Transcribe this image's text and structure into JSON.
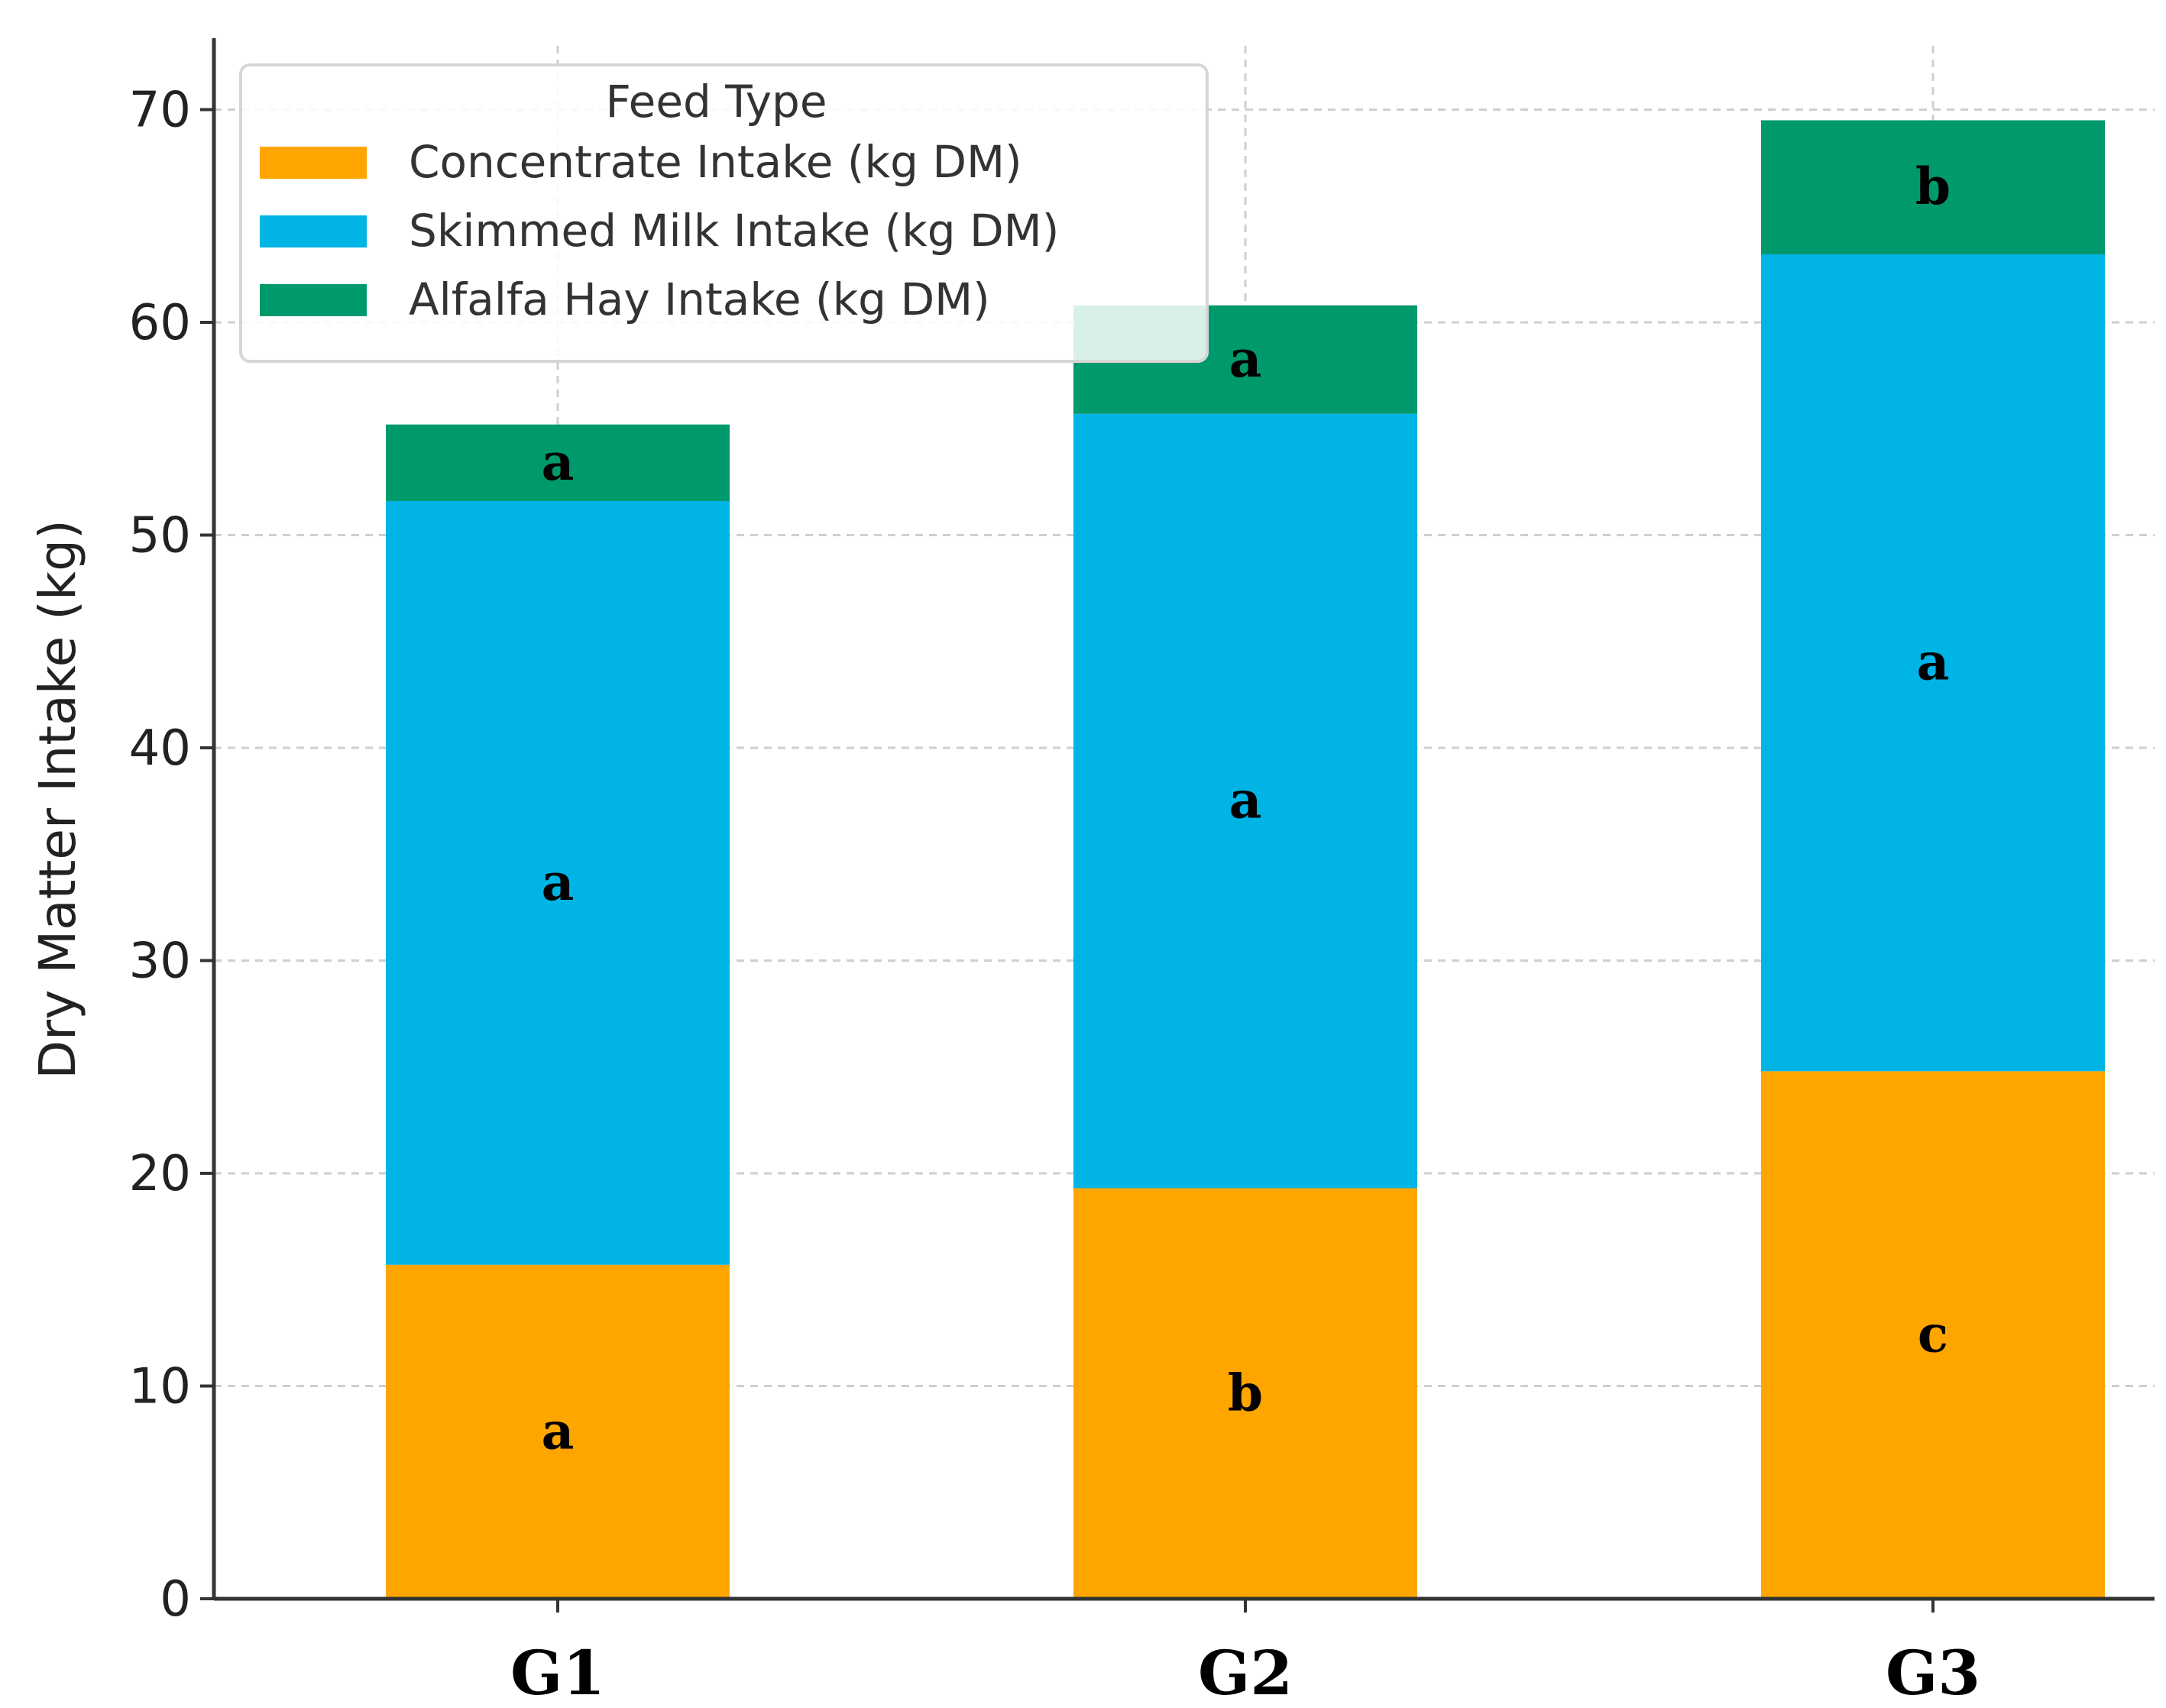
{
  "chart_data": {
    "type": "bar",
    "stacked": true,
    "categories": [
      "G1",
      "G2",
      "G3"
    ],
    "ylabel": "Dry Matter Intake (kg)",
    "xlabel": "",
    "ylim": [
      0,
      73
    ],
    "yticks": [
      0,
      10,
      20,
      30,
      40,
      50,
      60,
      70
    ],
    "grid": true,
    "legend": {
      "title": "Feed Type",
      "placement": "top-left"
    },
    "series": [
      {
        "name": "Concentrate Intake (kg DM)",
        "color": "#FFA500",
        "values": [
          15.7,
          19.3,
          24.8
        ],
        "labels": [
          "a",
          "b",
          "c"
        ]
      },
      {
        "name": "Skimmed Milk Intake (kg DM)",
        "color": "#00B4E6",
        "values": [
          35.9,
          36.4,
          38.4
        ],
        "labels": [
          "a",
          "a",
          "a"
        ]
      },
      {
        "name": "Alfalfa Hay Intake (kg DM)",
        "color": "#00996B",
        "values": [
          3.6,
          5.1,
          6.3
        ],
        "labels": [
          "a",
          "a",
          "b"
        ]
      }
    ]
  }
}
